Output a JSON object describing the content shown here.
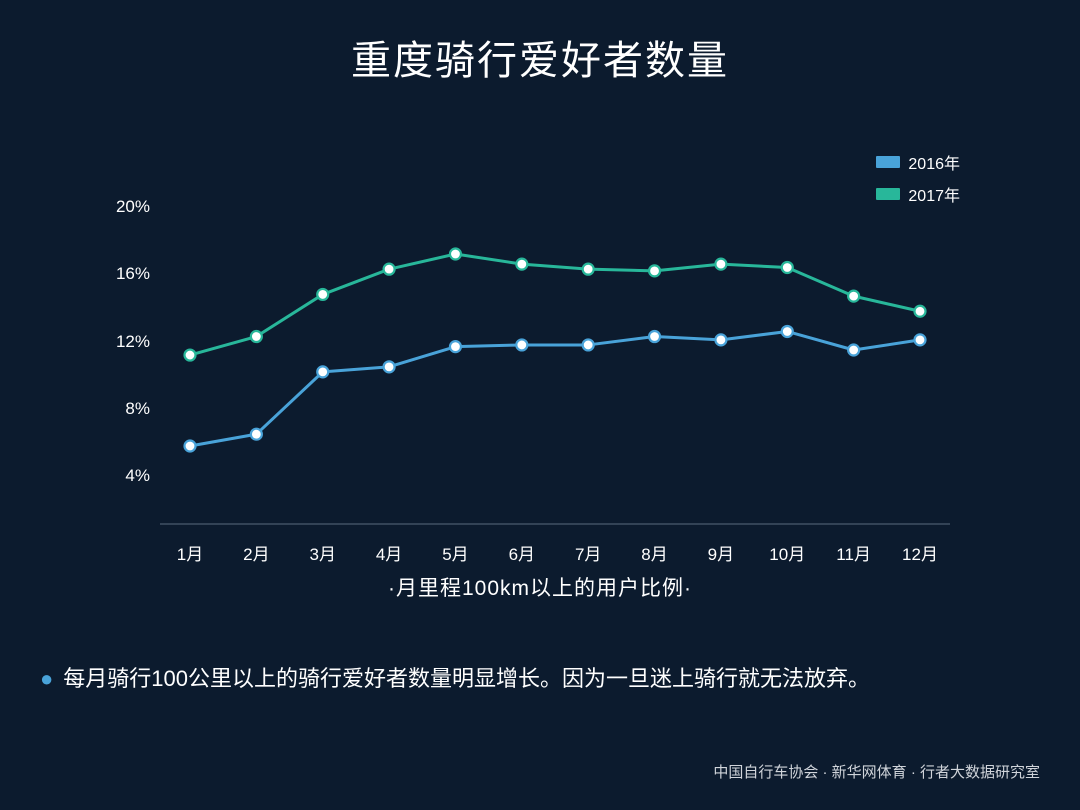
{
  "title": "重度骑行爱好者数量",
  "subtitle": "·月里程100km以上的用户比例·",
  "note_bullet_color": "#49a3d9",
  "note_text": "每月骑行100公里以上的骑行爱好者数量明显增长。因为一旦迷上骑行就无法放弃。",
  "footer": "中国自行车协会 · 新华网体育 · 行者大数据研究室",
  "chart": {
    "type": "line",
    "background_color": "#0c1b2e",
    "text_color": "#ffffff",
    "label_fontsize": 17,
    "subtitle_fontsize": 21,
    "title_fontsize": 40,
    "y_axis": {
      "min": 2,
      "max": 21,
      "ticks": [
        4,
        8,
        12,
        16,
        20
      ],
      "tick_labels": [
        "4%",
        "8%",
        "12%",
        "16%",
        "20%"
      ]
    },
    "x_axis": {
      "categories": [
        "1月",
        "2月",
        "3月",
        "4月",
        "5月",
        "6月",
        "7月",
        "8月",
        "9月",
        "10月",
        "11月",
        "12月"
      ]
    },
    "axis_line_color": "#5a6b7d",
    "line_width": 3,
    "marker_radius": 5.5,
    "marker_stroke_width": 2.2,
    "marker_fill": "#ffffff",
    "legend": {
      "items": [
        {
          "label": "2016年",
          "color": "#49a3d9"
        },
        {
          "label": "2017年",
          "color": "#28b79a"
        }
      ]
    },
    "series": [
      {
        "name": "2016年",
        "color": "#49a3d9",
        "values": [
          5.8,
          6.5,
          10.2,
          10.5,
          11.7,
          11.8,
          11.8,
          12.3,
          12.1,
          12.6,
          11.5,
          12.1
        ]
      },
      {
        "name": "2017年",
        "color": "#28b79a",
        "values": [
          11.2,
          12.3,
          14.8,
          16.3,
          17.2,
          16.6,
          16.3,
          16.2,
          16.6,
          16.4,
          14.7,
          13.8
        ]
      }
    ]
  }
}
